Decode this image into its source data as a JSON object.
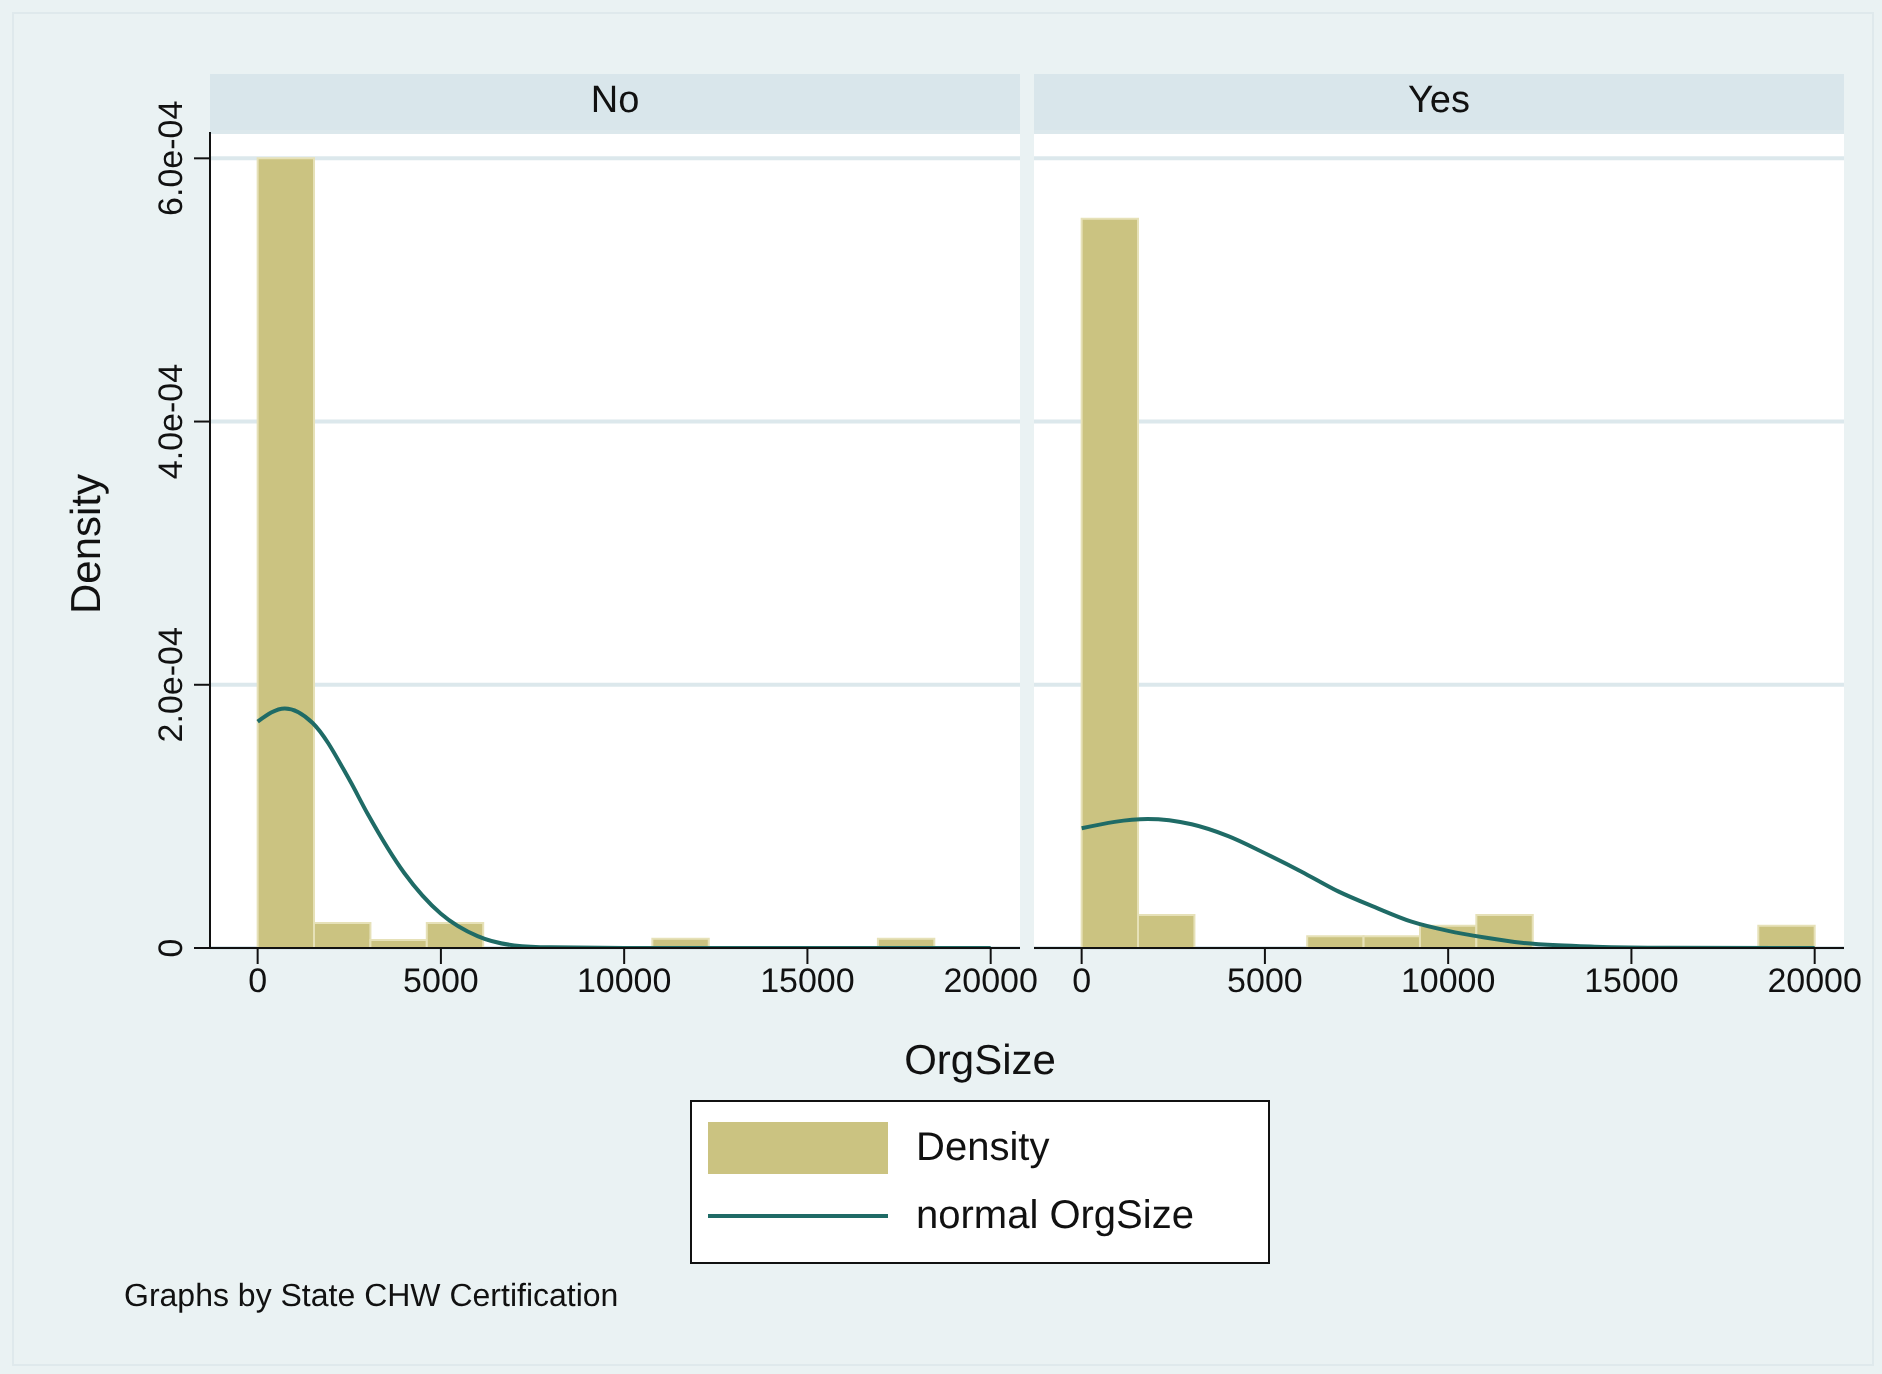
{
  "chart_data": [
    {
      "type": "histogram",
      "title": "No",
      "xlabel": "OrgSize",
      "ylabel": "Density",
      "annotations": [
        "Graphs by State CHW Certification"
      ],
      "legend": "bottom",
      "grid": "y",
      "bins": [
        0,
        1538,
        3077,
        4615,
        6154,
        7692,
        9231,
        10769,
        12308,
        13846,
        15385,
        16923,
        18462,
        20000
      ],
      "xlim": [
        -1300,
        20800
      ],
      "xticks": [
        0,
        5000,
        10000,
        15000,
        20000
      ],
      "ylim": [
        0,
        0.00062
      ],
      "yticks": [
        0,
        {
          "value": 0.0002,
          "label": "2.0e-04"
        },
        {
          "value": 0.0004,
          "label": "4.0e-04"
        },
        {
          "value": 0.0006,
          "label": "6.0e-04"
        }
      ],
      "series": [
        {
          "name": "Density",
          "color": "#cbc381",
          "values": [
            0.0006,
            1.9e-05,
            6e-06,
            1.9e-05,
            0,
            0,
            0,
            7e-06,
            0,
            0,
            0,
            7e-06,
            0
          ]
        },
        {
          "name": "normal OrgSize",
          "type": "line",
          "color": "#1f6b66",
          "x": [
            0,
            740,
            1500,
            2500,
            3000,
            4000,
            5000,
            6000,
            7000,
            8000,
            10000,
            12000,
            15000,
            20000
          ],
          "values": [
            0.000172,
            0.000182,
            0.000171,
            0.000128,
            0.000102,
            5.7e-05,
            2.6e-05,
            9e-06,
            2e-06,
            5e-07,
            0,
            0,
            0,
            0
          ]
        }
      ]
    },
    {
      "type": "histogram",
      "title": "Yes",
      "tick_labels": "x",
      "grid": "y",
      "bins": [
        0,
        1538,
        3077,
        4615,
        6154,
        7692,
        9231,
        10769,
        12308,
        13846,
        15385,
        16923,
        18462,
        20000
      ],
      "xlim": [
        -1300,
        20800
      ],
      "xticks": [
        0,
        5000,
        10000,
        15000,
        20000
      ],
      "ylim": [
        0,
        0.00062
      ],
      "yticks": [
        {
          "value": 0,
          "label": null
        },
        {
          "value": 0.0002,
          "label": null
        },
        {
          "value": 0.0004,
          "label": null
        },
        {
          "value": 0.0006,
          "label": null
        }
      ],
      "series": [
        {
          "color": "#cbc381",
          "values": [
            0.000554,
            2.5e-05,
            0,
            0,
            9e-06,
            9e-06,
            1.7e-05,
            2.5e-05,
            0,
            0,
            0,
            0,
            1.7e-05
          ]
        },
        {
          "type": "line",
          "color": "#1f6b66",
          "x": [
            0,
            1800,
            3000,
            4000,
            5000,
            6000,
            7000,
            8000,
            9000,
            10000,
            11000,
            12000,
            13000,
            14000,
            16000,
            20000
          ],
          "values": [
            9.1e-05,
            9.8e-05,
            9.4e-05,
            8.5e-05,
            7.2e-05,
            5.8e-05,
            4.3e-05,
            3.1e-05,
            2e-05,
            1.3e-05,
            8e-06,
            4e-06,
            2e-06,
            1e-06,
            2e-07,
            0
          ]
        }
      ]
    }
  ]
}
